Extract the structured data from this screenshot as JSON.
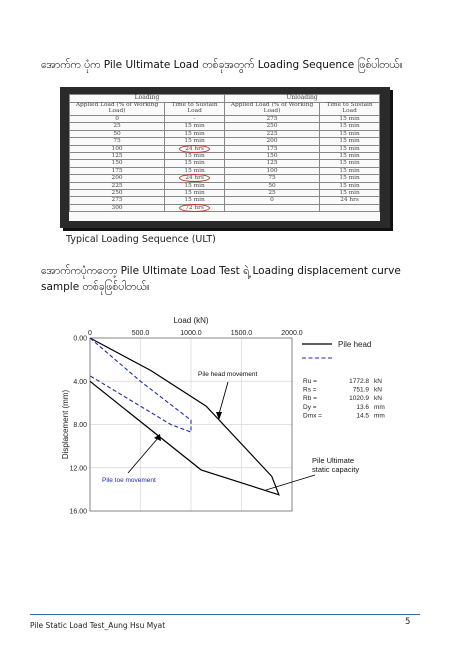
{
  "heading1": "အောက်က ပုံက Pile Ultimate Load တစ်ခုအတွက် Loading Sequence ဖြစ်ပါတယ်။",
  "table": {
    "groups": [
      "Loading",
      "Unloading"
    ],
    "headers": [
      "Applied Load (% of Working Load)",
      "Time to Sustain Load",
      "Applied Load (% of Working Load)",
      "Time to Sustain Load"
    ],
    "rows": [
      [
        "0",
        "-",
        "275",
        "15 min"
      ],
      [
        "25",
        "15 min",
        "250",
        "15 min"
      ],
      [
        "50",
        "15 min",
        "225",
        "15 min"
      ],
      [
        "75",
        "15 min",
        "200",
        "15 min"
      ],
      [
        "100",
        "24 hrs",
        "175",
        "15 min"
      ],
      [
        "125",
        "15 min",
        "150",
        "15 min"
      ],
      [
        "150",
        "15 min",
        "125",
        "15 min"
      ],
      [
        "175",
        "15 min",
        "100",
        "15 min"
      ],
      [
        "200",
        "24 hrs",
        "75",
        "15 min"
      ],
      [
        "225",
        "15 min",
        "50",
        "15 min"
      ],
      [
        "250",
        "15 min",
        "25",
        "15 min"
      ],
      [
        "275",
        "15 min",
        "0",
        "24 hrs"
      ],
      [
        "300",
        "72 hrs",
        "",
        ""
      ]
    ],
    "circled_rows": [
      4,
      8,
      12
    ]
  },
  "caption": "Typical Loading Sequence (ULT)",
  "heading2": "အောက်ကပုံကတော့ Pile Ultimate Load Test ရဲ့ Loading displacement curve sample တစ်ခုဖြစ်ပါတယ်။",
  "chart_data": {
    "type": "line",
    "xlabel": "Load (kN)",
    "ylabel": "Displacement (mm)",
    "xlim": [
      0,
      2000
    ],
    "ylim": [
      0,
      16
    ],
    "y_inverted": true,
    "x_ticks": [
      "0",
      "500.0",
      "1000.0",
      "1500.0",
      "2000.0"
    ],
    "y_ticks": [
      "0.00",
      "4.00",
      "8.00",
      "12.00",
      "16.00"
    ],
    "series": [
      {
        "name": "Pile head",
        "style": "solid",
        "x": [
          0,
          600,
          1150,
          1800,
          1870,
          1100,
          0
        ],
        "y": [
          0,
          3.0,
          6.3,
          12.8,
          14.5,
          12.2,
          4.0
        ]
      },
      {
        "name": "Pile toe",
        "style": "dashed",
        "x": [
          0,
          500,
          1000,
          1000,
          800,
          0
        ],
        "y": [
          0,
          4.0,
          7.6,
          8.7,
          8.0,
          3.5
        ]
      }
    ],
    "annotations": [
      "Pile head movement",
      "Pile toe movement",
      "Pile Ultimate static capacity"
    ],
    "stats": [
      {
        "label": "Ru =",
        "value": "1772.8",
        "unit": "kN"
      },
      {
        "label": "Rs =",
        "value": "751.9",
        "unit": "kN"
      },
      {
        "label": "Rb =",
        "value": "1020.9",
        "unit": "kN"
      },
      {
        "label": "Dy =",
        "value": "13.6",
        "unit": "mm"
      },
      {
        "label": "Dmx =",
        "value": "14.5",
        "unit": "mm"
      }
    ]
  },
  "footer": "Pile Static Load Test_Aung Hsu Myat",
  "page_number": "5"
}
